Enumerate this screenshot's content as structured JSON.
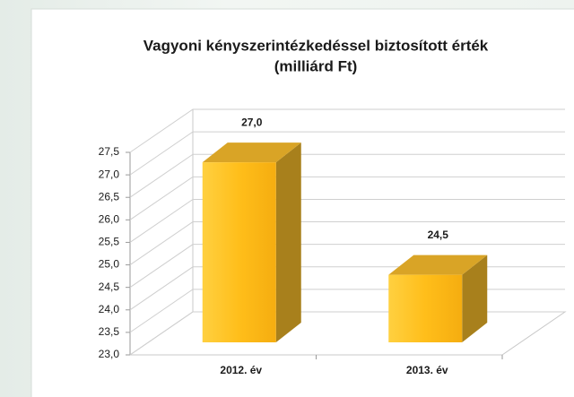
{
  "chart_data": {
    "type": "bar3d",
    "title": [
      "Vagyoni kényszerintézkedéssel biztosított érték",
      "(milliárd Ft)"
    ],
    "categories": [
      "2012. év",
      "2013. év"
    ],
    "values": [
      27.0,
      24.5
    ],
    "value_labels": [
      "27,0",
      "24,5"
    ],
    "color": "#ffbf1f",
    "ylim": [
      23,
      27.5
    ],
    "yticks": [
      {
        "value": 23,
        "label": "23,0"
      },
      {
        "value": 23.5,
        "label": "23,5"
      },
      {
        "value": 24,
        "label": "24,0"
      },
      {
        "value": 24.5,
        "label": "24,5"
      },
      {
        "value": 25,
        "label": "25,0"
      },
      {
        "value": 25.5,
        "label": "25,5"
      },
      {
        "value": 26,
        "label": "26,0"
      },
      {
        "value": 26.5,
        "label": "26,5"
      },
      {
        "value": 27,
        "label": "27,0"
      },
      {
        "value": 27.5,
        "label": "27,5"
      }
    ],
    "grid": true
  }
}
